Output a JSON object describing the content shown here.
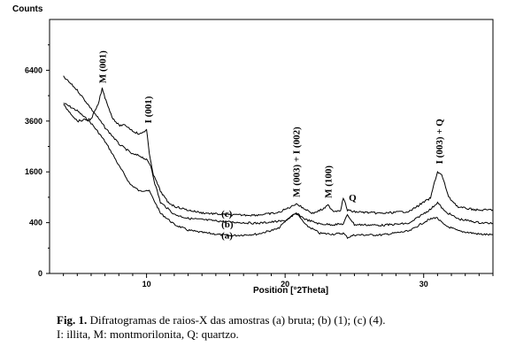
{
  "chart_data": {
    "type": "line",
    "ylabel": "Counts",
    "xlabel": "Position [°2Theta]",
    "xlim": [
      3,
      35
    ],
    "y_scale": "sqrt",
    "ylim": [
      0,
      10000
    ],
    "x_ticks": [
      10,
      20,
      30
    ],
    "x_tick_labels": [
      "10",
      "20",
      "30"
    ],
    "y_ticks": [
      0,
      400,
      1600,
      3600,
      6400
    ],
    "y_tick_labels": [
      "0",
      "400",
      "1600",
      "3600",
      "6400"
    ],
    "grid": false,
    "legend": "none",
    "series": [
      {
        "name": "(a)",
        "x": [
          4.0,
          5.0,
          6.0,
          7.0,
          8.0,
          8.8,
          9.5,
          10.0,
          10.2,
          10.5,
          11.0,
          12.0,
          13.0,
          14.0,
          16.0,
          18.0,
          19.5,
          20.3,
          20.8,
          21.5,
          22.5,
          23.5,
          24.2,
          24.5,
          25.0,
          27.0,
          29.0,
          30.3,
          30.9,
          31.5,
          32.5,
          34.0,
          35.0
        ],
        "y": [
          4500,
          4100,
          3500,
          2700,
          1800,
          1240,
          1050,
          1080,
          1050,
          850,
          560,
          370,
          290,
          260,
          220,
          240,
          310,
          480,
          560,
          360,
          250,
          240,
          250,
          200,
          230,
          230,
          280,
          440,
          490,
          360,
          280,
          240,
          230
        ]
      },
      {
        "name": "(b)",
        "x": [
          4.0,
          5.0,
          6.0,
          7.0,
          8.0,
          9.0,
          9.5,
          10.0,
          10.3,
          10.6,
          11.0,
          12.0,
          13.0,
          14.0,
          16.0,
          18.0,
          20.0,
          20.8,
          21.5,
          22.5,
          23.5,
          24.2,
          24.5,
          25.0,
          27.0,
          29.0,
          30.5,
          31.0,
          31.5,
          32.5,
          34.0,
          35.0
        ],
        "y": [
          6000,
          5200,
          4200,
          3300,
          2600,
          2200,
          2150,
          2000,
          1800,
          1250,
          780,
          540,
          470,
          450,
          410,
          390,
          430,
          560,
          450,
          380,
          370,
          380,
          530,
          370,
          360,
          390,
          640,
          780,
          600,
          460,
          400,
          390
        ]
      },
      {
        "name": "(c)",
        "x": [
          4.0,
          5.0,
          6.0,
          6.5,
          6.8,
          7.0,
          7.5,
          8.0,
          8.5,
          9.0,
          9.5,
          10.0,
          10.2,
          10.5,
          11.0,
          11.5,
          12.0,
          13.0,
          14.0,
          16.0,
          18.0,
          19.5,
          20.5,
          20.8,
          21.2,
          22.0,
          22.8,
          23.1,
          23.5,
          24.0,
          24.2,
          24.5,
          25.0,
          27.0,
          29.0,
          30.5,
          31.0,
          31.3,
          31.8,
          32.5,
          34.0,
          35.0
        ],
        "y": [
          4400,
          3600,
          3700,
          4400,
          5300,
          4800,
          3800,
          3400,
          3400,
          3150,
          3000,
          3200,
          2200,
          1500,
          1050,
          800,
          700,
          620,
          570,
          530,
          530,
          570,
          700,
          760,
          680,
          560,
          650,
          720,
          600,
          620,
          880,
          620,
          590,
          560,
          600,
          880,
          1600,
          1500,
          900,
          680,
          620,
          630
        ]
      }
    ],
    "annotations": [
      {
        "text": "M (001)",
        "x": 6.8,
        "y": 5300,
        "orientation": "vertical"
      },
      {
        "text": "I (001)",
        "x": 10.1,
        "y": 3250,
        "orientation": "vertical"
      },
      {
        "text": "M (003) + I (002)",
        "x": 20.8,
        "y": 780,
        "orientation": "vertical"
      },
      {
        "text": "M (100)",
        "x": 23.1,
        "y": 760,
        "orientation": "vertical"
      },
      {
        "text": "Q",
        "x": 24.6,
        "y": 900,
        "orientation": "horizontal"
      },
      {
        "text": "I (003) + Q",
        "x": 31.1,
        "y": 1680,
        "orientation": "vertical"
      },
      {
        "text": "(c)",
        "x": 15.4,
        "y": 560,
        "orientation": "horizontal"
      },
      {
        "text": "(b)",
        "x": 15.4,
        "y": 380,
        "orientation": "horizontal"
      },
      {
        "text": "(a)",
        "x": 15.4,
        "y": 230,
        "orientation": "horizontal"
      }
    ]
  },
  "caption": {
    "label": "Fig. 1.",
    "line1": " Difratogramas de raios-X das amostras (a) bruta; (b) (1); (c) (4).",
    "line2": "I: illita, M: montmorilonita, Q: quartzo."
  }
}
